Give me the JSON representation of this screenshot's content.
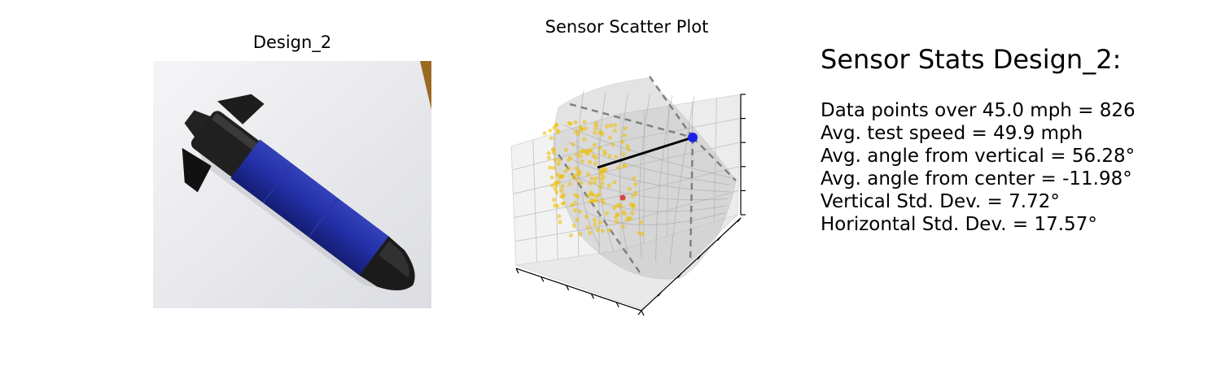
{
  "photo_panel": {
    "title": "Design_2"
  },
  "chart_data": {
    "type": "scatter",
    "title": "Sensor Scatter Plot",
    "projection": "3d",
    "axes": {
      "xlabel": "",
      "ylabel": "",
      "zlabel": "",
      "tick_labels": "hidden"
    },
    "hemisphere_surface": {
      "color": "#808080",
      "opacity": 0.3
    },
    "dashed_guide_lines": {
      "color": "#808080",
      "count": 4
    },
    "points": {
      "color": "#f0c000",
      "approx_count": 826,
      "avg_angle_from_vertical_deg": 56.28,
      "avg_angle_from_center_deg": -11.98,
      "vertical_std_deg": 7.72,
      "horizontal_std_deg": 17.57
    },
    "mean_vector_marker": {
      "color": "#d4434a"
    },
    "reference_point": {
      "color": "#0000ff"
    },
    "mean_line": {
      "color": "#000000"
    },
    "colors": {
      "pane": "#f2f2f2",
      "grid": "#c8c8c8",
      "surface": "#b0b0b0"
    }
  },
  "stats": {
    "title": "Sensor Stats Design_2:",
    "lines": [
      "Data points over 45.0 mph = 826",
      "Avg. test speed = 49.9 mph",
      "Avg. angle from vertical = 56.28°",
      "Avg. angle from center = -11.98°",
      "Vertical Std. Dev. = 7.72°",
      "Horizontal Std. Dev. = 17.57°"
    ]
  },
  "colors": {
    "body": "#1e2a9e",
    "body_highlight": "#3a48c8",
    "cap": "#1a1a1a",
    "paper": "#ececee",
    "table": "#9a6a22"
  }
}
